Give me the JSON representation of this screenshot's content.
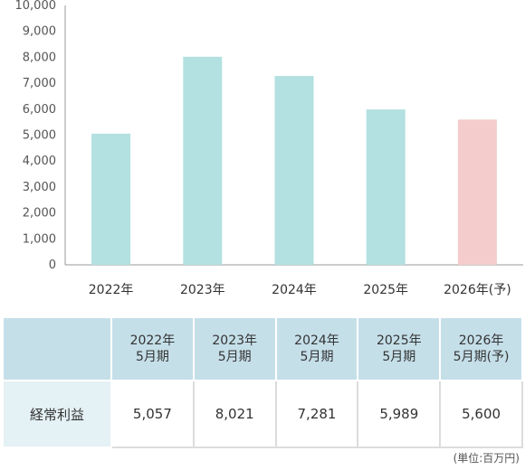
{
  "chart_data": {
    "type": "bar",
    "categories": [
      "2022年",
      "2023年",
      "2024年",
      "2025年",
      "2026年(予)"
    ],
    "values": [
      5057,
      8021,
      7281,
      5989,
      5600
    ],
    "bar_colors": [
      "#b3e0e0",
      "#b3e0e0",
      "#b3e0e0",
      "#b3e0e0",
      "#f5cccc"
    ],
    "ylim": [
      0,
      10000
    ],
    "yticks": [
      "0",
      "1,000",
      "2,000",
      "3,000",
      "4,000",
      "5,000",
      "6,000",
      "7,000",
      "8,000",
      "9,000",
      "10,000"
    ],
    "grid": false,
    "title": "",
    "xlabel": "",
    "ylabel": ""
  },
  "table": {
    "corner": "",
    "headers": [
      {
        "year": "2022年",
        "period": "5月期"
      },
      {
        "year": "2023年",
        "period": "5月期"
      },
      {
        "year": "2024年",
        "period": "5月期"
      },
      {
        "year": "2025年",
        "period": "5月期"
      },
      {
        "year": "2026年",
        "period": "5月期(予)"
      }
    ],
    "row_label": "経常利益",
    "values": [
      "5,057",
      "8,021",
      "7,281",
      "5,989",
      "5,600"
    ]
  },
  "unit_note": "(単位:百万円)"
}
